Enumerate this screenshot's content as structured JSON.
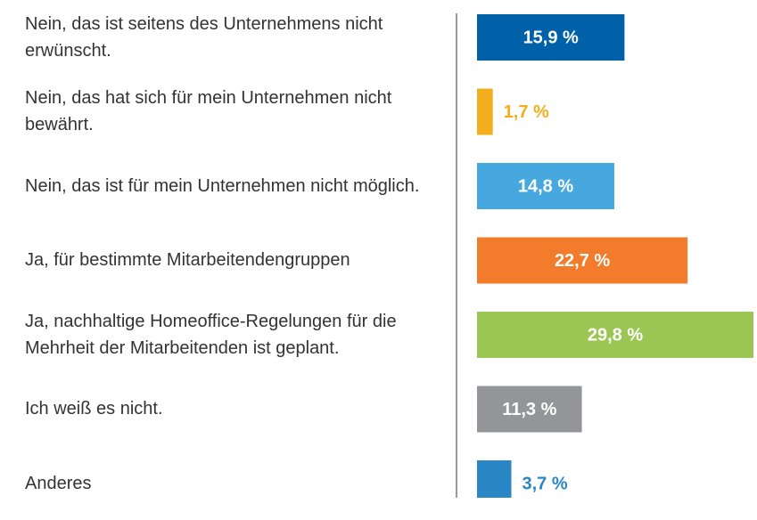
{
  "chart_data": {
    "type": "bar",
    "categories": [
      "Nein, das ist seitens des Unternehmens nicht erwünscht.",
      "Nein, das hat sich für mein Unternehmen nicht bewährt.",
      "Nein, das ist für mein Unternehmen nicht möglich.",
      "Ja, für bestimmte Mitarbeitendengruppen",
      "Ja, nachhaltige Homeoffice-Regelungen für die Mehrheit der Mitarbeitenden ist geplant.",
      "Ich weiß es nicht.",
      "Anderes"
    ],
    "values": [
      15.9,
      1.7,
      14.8,
      22.7,
      29.8,
      11.3,
      3.7
    ],
    "value_labels": [
      "15,9 %",
      "1,7 %",
      "14,8 %",
      "22,7 %",
      "29,8 %",
      "11,3 %",
      "3,7 %"
    ],
    "colors": [
      "#0061a8",
      "#f2ae1c",
      "#47a8e0",
      "#f37b2c",
      "#9bc653",
      "#939598",
      "#2b86c5"
    ]
  }
}
